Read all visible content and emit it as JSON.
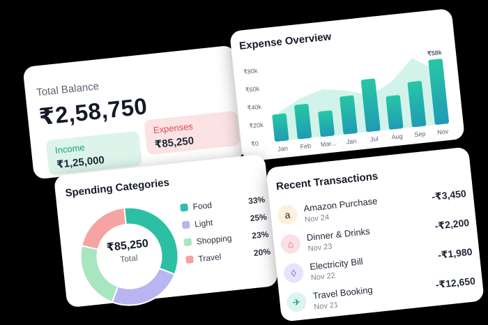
{
  "balance": {
    "title": "Total Balance",
    "amount": "₹2,58,750",
    "income_label": "Income",
    "income_value": "₹1,25,000",
    "expenses_label": "Expenses",
    "expenses_value": "₹85,250"
  },
  "overview": {
    "title": "Expense Overview",
    "peak_label": "₹58k"
  },
  "chart_data": {
    "type": "bar",
    "title": "Expense Overview",
    "categories": [
      "Jan",
      "Feb",
      "Mar...",
      "Jan",
      "Jul",
      "Aug",
      "Sep",
      "Nov"
    ],
    "values": [
      30,
      38,
      28,
      42,
      58,
      37,
      50,
      72
    ],
    "area_values": [
      32,
      45,
      52,
      48,
      40,
      52,
      76,
      60
    ],
    "y_ticks": [
      "₹0",
      "₹20k",
      "₹40k",
      "₹60k",
      "₹80k"
    ],
    "ylim": [
      0,
      80
    ],
    "xlabel": "",
    "ylabel": "",
    "grid": false,
    "colors": {
      "bar_top": "#27c7a4",
      "bar_bottom": "#1f9bb5",
      "area": "#bfeee0"
    }
  },
  "spending": {
    "title": "Spending Categories",
    "center_amount": "₹85,250",
    "center_label": "Total",
    "items": [
      {
        "name": "Food",
        "percent": "33%",
        "value": 33,
        "color": "#2dbfa4"
      },
      {
        "name": "Light",
        "percent": "25%",
        "value": 25,
        "color": "#b9b5f3"
      },
      {
        "name": "Shopping",
        "percent": "23%",
        "value": 23,
        "color": "#a8e6c0"
      },
      {
        "name": "Travel",
        "percent": "20%",
        "value": 20,
        "color": "#f6a3a3"
      }
    ]
  },
  "transactions": {
    "title": "Recent Transactions",
    "items": [
      {
        "name": "Amazon Purchase",
        "date": "Nov 24",
        "amount": "-₹3,450",
        "icon": "amazon-icon",
        "glyph": "a",
        "bg": "#fdf0dc",
        "fg": "#1d2433"
      },
      {
        "name": "Dinner & Drinks",
        "date": "Nov 23",
        "amount": "-₹2,200",
        "icon": "dinner-icon",
        "glyph": "⌂",
        "bg": "#fbe0e4",
        "fg": "#d8566a"
      },
      {
        "name": "Electricity Bill",
        "date": "Nov 22",
        "amount": "-₹1,980",
        "icon": "lightbulb-icon",
        "glyph": "◊",
        "bg": "#e6e4fb",
        "fg": "#6c65d8"
      },
      {
        "name": "Travel Booking",
        "date": "Nov 21",
        "amount": "-₹12,650",
        "icon": "airplane-icon",
        "glyph": "✈",
        "bg": "#dcf4ef",
        "fg": "#1aa37a"
      }
    ]
  }
}
